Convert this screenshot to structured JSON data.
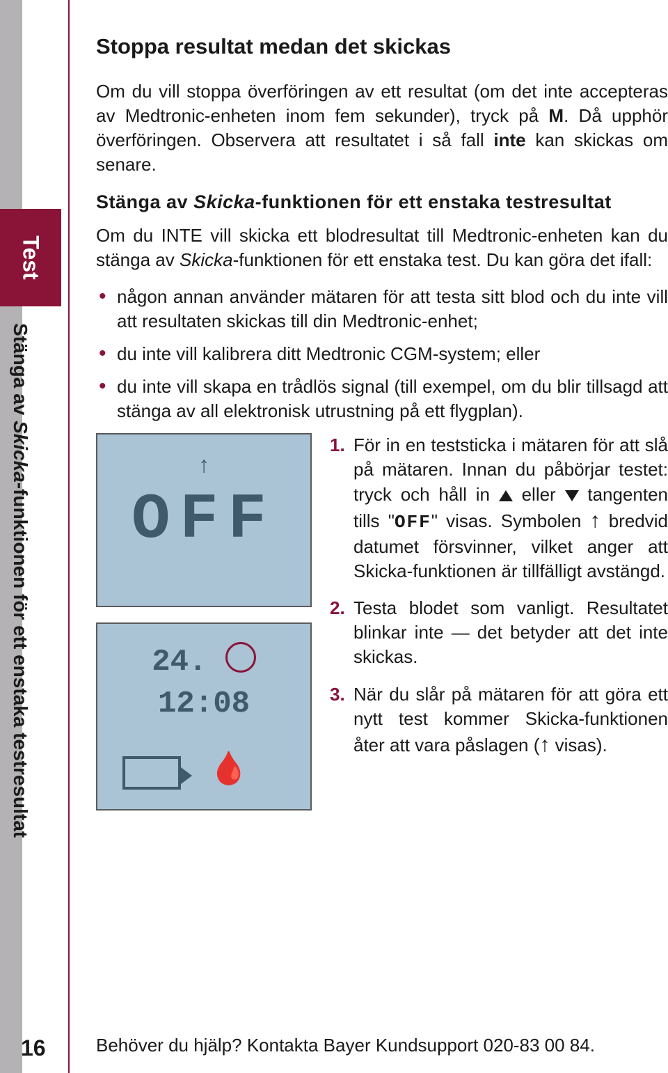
{
  "sidebar": {
    "tab_label": "Test",
    "section_label": "Stänga av Skicka-funktionen för ett enstaka testresultat",
    "page_number": "16",
    "colors": {
      "grey": "#b4b2b5",
      "red": "#8a1438",
      "divider": "#8a1438"
    }
  },
  "title": "Stoppa resultat medan det skickas",
  "intro_html": "Om du vill stoppa överföringen av ett resultat (om det inte accepteras av Medtronic-enheten inom fem sekunder), tryck på <span class=\"bold\">M</span>. Då upphör överföringen. Observera att resultatet i så fall <span class=\"bold\">inte</span> kan skickas om senare.",
  "subtitle_html": "Stänga av <span class=\"ital\">Skicka</span>-funktionen för ett enstaka testresultat",
  "para2_html": "Om du INTE vill skicka ett blodresultat till Medtronic-enheten kan du stänga av <span class=\"ital\">Skicka</span>-funktionen för ett enstaka test. Du kan göra det ifall:",
  "bullets": [
    "någon annan använder mätaren för att testa sitt blod och du inte vill att resultaten skickas till din Medtronic-enhet;",
    "du inte vill kalibrera ditt Medtronic CGM-system; eller",
    "du inte vill skapa en trådlös signal (till exempel, om du blir tillsagd att stänga av all elektronisk utrustning på ett flygplan)."
  ],
  "lcd": {
    "off_text": "OFF",
    "date_text_left": "24.",
    "date_text_right": "12:08",
    "bg": "#aac3d5",
    "ink": "#3e5a6b"
  },
  "steps": [
    {
      "num": "1.",
      "html": "För in en teststicka i mätaren för att slå på mätaren. <span class=\"boldital\">Innan du påbörjar testet:</span> tryck och håll in <span class=\"tri-up\"></span> eller <span class=\"tri-down\"></span> tangenten tills \"<span class=\"seg-off\">OFF</span>\" visas. Symbolen <span class=\"arrow-inline\">↑</span> bredvid datumet försvinner, vilket anger att <span class=\"ital\">Skicka</span>-funktionen är tillfälligt avstängd."
    },
    {
      "num": "2.",
      "html": "Testa blodet som vanligt. Resultatet blinkar inte — det betyder att det inte skickas."
    },
    {
      "num": "3.",
      "html": "När du slår på mätaren för att göra ett nytt test kommer <span class=\"ital\">Skicka</span>-funktionen åter att vara påslagen (<span class=\"arrow-inline\">↑</span> visas)."
    }
  ],
  "footer": "Behöver du hjälp? Kontakta Bayer Kundsupport 020-83 00 84."
}
